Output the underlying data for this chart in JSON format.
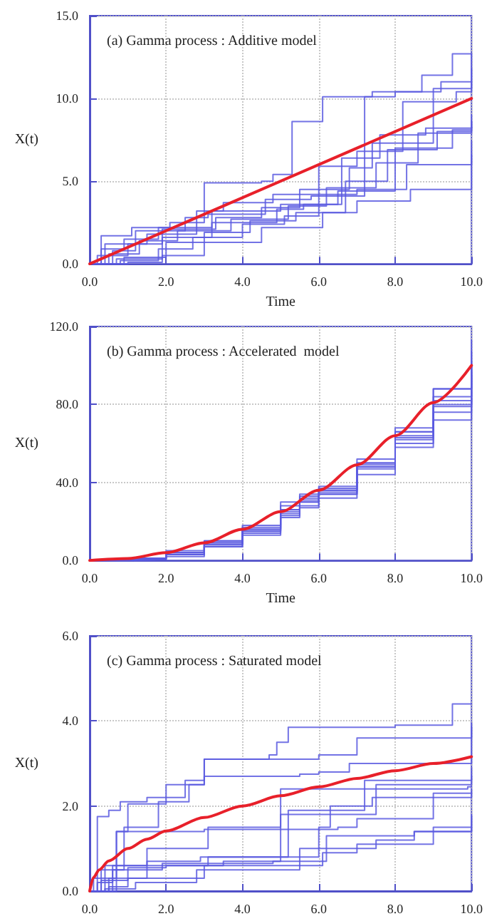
{
  "chart_data": [
    {
      "type": "step",
      "title": "(a) Gamma process : Additive model",
      "xlabel": "Time",
      "ylabel": "X(t)",
      "grid": true,
      "xlim": [
        0,
        10
      ],
      "ylim": [
        0,
        15
      ],
      "xticks": [
        {
          "value": 0,
          "label": "0.0"
        },
        {
          "value": 2,
          "label": "2.0"
        },
        {
          "value": 4,
          "label": "4.0"
        },
        {
          "value": 6,
          "label": "6.0"
        },
        {
          "value": 8,
          "label": "8.0"
        },
        {
          "value": 10,
          "label": "10.0"
        }
      ],
      "yticks": [
        {
          "value": 0,
          "label": "0.0"
        },
        {
          "value": 5,
          "label": "5.0"
        },
        {
          "value": 10,
          "label": "10.0"
        },
        {
          "value": 15,
          "label": "15.0"
        }
      ],
      "series": [
        {
          "color": "#5a5ae0",
          "x": [
            0,
            0.3,
            1.1,
            2.1,
            3.0,
            4.5,
            4.8,
            5.3,
            6.1,
            7.4,
            8.7,
            9.5,
            10
          ],
          "values": [
            0,
            1.7,
            2.2,
            2.5,
            4.9,
            5.0,
            5.4,
            8.6,
            10.1,
            10.4,
            11.4,
            12.7,
            12.7
          ]
        },
        {
          "color": "#5a5ae0",
          "x": [
            0,
            0.6,
            1.2,
            2.5,
            3.1,
            4.6,
            5.8,
            7.2,
            8.0,
            9.2,
            10
          ],
          "values": [
            0,
            0.8,
            2.0,
            2.8,
            3.0,
            3.9,
            4.1,
            10.1,
            10.4,
            11.0,
            11.8
          ]
        },
        {
          "color": "#5a5ae0",
          "x": [
            0,
            0.4,
            1.5,
            2.8,
            3.5,
            4.8,
            6.0,
            7.0,
            8.2,
            9.6,
            10
          ],
          "values": [
            0,
            1.2,
            1.8,
            3.2,
            3.7,
            4.2,
            5.9,
            6.8,
            9.8,
            10.4,
            11.0
          ]
        },
        {
          "color": "#5a5ae0",
          "x": [
            0,
            0.2,
            1.0,
            1.9,
            3.3,
            4.5,
            5.5,
            6.8,
            7.4,
            9.0,
            10
          ],
          "values": [
            0,
            0.5,
            1.2,
            2.1,
            2.8,
            3.4,
            4.5,
            5.8,
            7.3,
            10.6,
            12.7
          ]
        },
        {
          "color": "#5a5ae0",
          "x": [
            0,
            0.7,
            1.9,
            3.2,
            4.9,
            5.6,
            6.6,
            7.6,
            8.8,
            10
          ],
          "values": [
            0,
            0.3,
            1.6,
            2.5,
            3.3,
            3.6,
            6.4,
            7.8,
            8.2,
            9.0
          ]
        },
        {
          "color": "#5a5ae0",
          "x": [
            0,
            0.5,
            1.3,
            2.3,
            3.7,
            5.2,
            6.2,
            7.5,
            8.6,
            10
          ],
          "values": [
            0,
            0.6,
            1.4,
            2.0,
            2.7,
            3.5,
            4.6,
            6.1,
            7.9,
            8.6
          ]
        },
        {
          "color": "#5a5ae0",
          "x": [
            0,
            0.9,
            2.0,
            3.0,
            4.2,
            5.4,
            6.7,
            7.8,
            9.1,
            10
          ],
          "values": [
            0,
            0.4,
            1.3,
            1.9,
            2.6,
            3.1,
            5.0,
            6.9,
            8.0,
            8.3
          ]
        },
        {
          "color": "#5a5ae0",
          "x": [
            0,
            0.8,
            1.8,
            2.7,
            4.0,
            5.1,
            6.0,
            7.0,
            8.3,
            10
          ],
          "values": [
            0,
            0.2,
            0.9,
            1.6,
            2.4,
            2.9,
            4.2,
            4.5,
            6.0,
            7.4
          ]
        },
        {
          "color": "#5a5ae0",
          "x": [
            0,
            1.0,
            1.9,
            3.0,
            4.5,
            6.1,
            7.0,
            8.4,
            10
          ],
          "values": [
            0,
            0.1,
            0.5,
            1.3,
            2.2,
            3.1,
            3.8,
            4.5,
            6.6
          ]
        },
        {
          "color": "#5a5ae0",
          "x": [
            0,
            0.3,
            0.9,
            1.8,
            3.2,
            5.0,
            6.5,
            8.0,
            9.5,
            10
          ],
          "values": [
            0,
            0.9,
            1.5,
            2.2,
            3.2,
            3.6,
            4.4,
            7.0,
            8.1,
            8.6
          ]
        },
        {
          "type": "line",
          "color": "#e8202a",
          "x": [
            0,
            10
          ],
          "values": [
            0,
            10
          ]
        }
      ]
    },
    {
      "type": "step",
      "title": "(b) Gamma process : Accelerated  model",
      "xlabel": "Time",
      "ylabel": "X(t)",
      "grid": true,
      "xlim": [
        0,
        10
      ],
      "ylim": [
        0,
        120
      ],
      "xticks": [
        {
          "value": 0,
          "label": "0.0"
        },
        {
          "value": 2,
          "label": "2.0"
        },
        {
          "value": 4,
          "label": "4.0"
        },
        {
          "value": 6,
          "label": "6.0"
        },
        {
          "value": 8,
          "label": "8.0"
        },
        {
          "value": 10,
          "label": "10.0"
        }
      ],
      "yticks": [
        {
          "value": 0,
          "label": "0.0"
        },
        {
          "value": 40,
          "label": "40.0"
        },
        {
          "value": 80,
          "label": "80.0"
        },
        {
          "value": 120,
          "label": "120.0"
        }
      ],
      "series": [
        {
          "color": "#5a5ae0",
          "x": [
            0,
            1,
            2,
            3,
            4,
            5,
            5.5,
            6,
            7,
            8,
            9,
            10
          ],
          "values": [
            0,
            1,
            5,
            10,
            17,
            28,
            33,
            36,
            50,
            66,
            88,
            113
          ]
        },
        {
          "color": "#5a5ae0",
          "x": [
            0,
            1,
            2,
            3,
            4,
            5,
            5.5,
            6,
            7,
            8,
            9,
            10
          ],
          "values": [
            0,
            1,
            4,
            9,
            16,
            26,
            32,
            35,
            48,
            63,
            80,
            97
          ]
        },
        {
          "color": "#5a5ae0",
          "x": [
            0,
            1,
            2,
            3,
            4,
            5,
            5.5,
            6,
            7,
            8,
            9,
            10
          ],
          "values": [
            0,
            0.5,
            3,
            8,
            15,
            24,
            30,
            36,
            50,
            64,
            82,
            100
          ]
        },
        {
          "color": "#5a5ae0",
          "x": [
            0,
            1,
            2,
            3,
            4,
            5,
            5.5,
            6,
            7,
            8,
            9,
            10
          ],
          "values": [
            0,
            1,
            4,
            10,
            18,
            30,
            34,
            38,
            52,
            68,
            88,
            107
          ]
        },
        {
          "color": "#5a5ae0",
          "x": [
            0,
            1,
            2,
            3,
            4,
            5,
            5.5,
            6,
            7,
            8,
            9,
            10
          ],
          "values": [
            0,
            0.5,
            3,
            7,
            14,
            23,
            28,
            34,
            47,
            60,
            76,
            87
          ]
        },
        {
          "color": "#5a5ae0",
          "x": [
            0,
            1,
            2,
            3,
            4,
            5,
            5.5,
            6,
            7,
            8,
            9,
            10
          ],
          "values": [
            0,
            1,
            4,
            9,
            16,
            25,
            31,
            37,
            49,
            62,
            79,
            95
          ]
        },
        {
          "color": "#5a5ae0",
          "x": [
            0,
            1,
            2,
            3,
            4,
            5,
            5.5,
            6,
            7,
            8,
            9,
            10
          ],
          "values": [
            0,
            1,
            3,
            8,
            15,
            26,
            30,
            34,
            48,
            66,
            84,
            102
          ]
        },
        {
          "color": "#5a5ae0",
          "x": [
            0,
            1,
            2,
            3,
            4,
            5,
            5.5,
            6,
            7,
            8,
            9,
            10
          ],
          "values": [
            0,
            0.5,
            2,
            7,
            13,
            22,
            27,
            32,
            44,
            58,
            72,
            83
          ]
        },
        {
          "type": "line",
          "color": "#e8202a",
          "x": [
            0,
            1,
            2,
            3,
            4,
            5,
            6,
            7,
            8,
            9,
            10
          ],
          "values": [
            0,
            1,
            4,
            9,
            16,
            25,
            36,
            49,
            64,
            81,
            100
          ]
        }
      ]
    },
    {
      "type": "step",
      "title": "(c) Gamma process : Saturated model",
      "ylabel": "X(t)",
      "grid": true,
      "xlim": [
        0,
        10
      ],
      "ylim": [
        0,
        6
      ],
      "xticks": [
        {
          "value": 0,
          "label": "0.0"
        },
        {
          "value": 2,
          "label": "2.0"
        },
        {
          "value": 4,
          "label": "4.0"
        },
        {
          "value": 6,
          "label": "6.0"
        },
        {
          "value": 8,
          "label": "8.0"
        },
        {
          "value": 10,
          "label": "10.0"
        }
      ],
      "yticks": [
        {
          "value": 0,
          "label": "0.0"
        },
        {
          "value": 2,
          "label": "2.0"
        },
        {
          "value": 4,
          "label": "4.0"
        },
        {
          "value": 6,
          "label": "6.0"
        }
      ],
      "series": [
        {
          "color": "#5a5ae0",
          "x": [
            0,
            0.2,
            0.5,
            0.8,
            1.5,
            2.0,
            3.0,
            4.7,
            4.9,
            5.2,
            8.0,
            9.5,
            10
          ],
          "values": [
            0,
            1.75,
            1.9,
            2.1,
            2.2,
            2.5,
            3.1,
            3.2,
            3.5,
            3.85,
            3.9,
            4.4,
            4.4
          ]
        },
        {
          "color": "#5a5ae0",
          "x": [
            0,
            0.7,
            1.0,
            2.0,
            2.5,
            3.0,
            5.5,
            6.0,
            6.8,
            10
          ],
          "values": [
            0,
            1.4,
            2.05,
            2.2,
            2.6,
            2.7,
            2.75,
            2.8,
            3.0,
            3.95
          ]
        },
        {
          "color": "#5a5ae0",
          "x": [
            0,
            0.3,
            0.9,
            1.8,
            2.6,
            3.0,
            6.0,
            7.0,
            10
          ],
          "values": [
            0,
            0.5,
            1.5,
            2.1,
            2.5,
            3.1,
            3.2,
            3.6,
            3.85
          ]
        },
        {
          "color": "#5a5ae0",
          "x": [
            0,
            0.4,
            1.5,
            3.1,
            5.0,
            6.5,
            7.5,
            10
          ],
          "values": [
            0,
            0.6,
            1.0,
            1.5,
            1.8,
            1.8,
            2.5,
            2.9
          ]
        },
        {
          "color": "#5a5ae0",
          "x": [
            0,
            0.6,
            1.9,
            4.8,
            5.0,
            9.9,
            10
          ],
          "values": [
            0,
            0.6,
            0.65,
            0.7,
            2.4,
            2.45,
            2.45
          ]
        },
        {
          "color": "#5a5ae0",
          "x": [
            0,
            0.2,
            0.6,
            1.9,
            3.1,
            6.0,
            6.3,
            7.4,
            10
          ],
          "values": [
            0,
            0.2,
            0.5,
            0.6,
            0.8,
            1.5,
            2.0,
            2.2,
            2.3
          ]
        },
        {
          "color": "#5a5ae0",
          "x": [
            0,
            0.5,
            0.7,
            1.0,
            3.0,
            6.5,
            7.0,
            9.0,
            10
          ],
          "values": [
            0,
            0.3,
            1.4,
            1.4,
            1.45,
            1.5,
            1.7,
            2.3,
            2.4
          ]
        },
        {
          "color": "#5a5ae0",
          "x": [
            0,
            0.3,
            1.0,
            2.0,
            3.5,
            6.2,
            8.5,
            10
          ],
          "values": [
            0,
            0.25,
            0.55,
            0.6,
            0.7,
            1.3,
            1.4,
            1.8
          ]
        },
        {
          "color": "#5a5ae0",
          "x": [
            0,
            0.5,
            1.0,
            3.0,
            6.1,
            7.0,
            9.0,
            10
          ],
          "values": [
            0,
            0.1,
            0.3,
            0.6,
            0.9,
            1.1,
            1.5,
            1.75
          ]
        },
        {
          "color": "#5a5ae0",
          "x": [
            0,
            0.4,
            1.2,
            2.8,
            5.5,
            7.5,
            8.5,
            10
          ],
          "values": [
            0,
            0.05,
            0.2,
            0.5,
            1.0,
            1.2,
            1.4,
            1.5
          ]
        },
        {
          "color": "#5a5ae0",
          "x": [
            0,
            0.1,
            1.5,
            2.9,
            5.2,
            7.2,
            10
          ],
          "values": [
            0,
            0.3,
            0.7,
            0.8,
            1.9,
            2.6,
            2.7
          ]
        },
        {
          "type": "line",
          "color": "#e8202a",
          "x": [
            0,
            0.1,
            0.25,
            0.5,
            1,
            1.5,
            2,
            3,
            4,
            5,
            6,
            7,
            8,
            9,
            10
          ],
          "values": [
            0,
            0.32,
            0.5,
            0.71,
            1,
            1.22,
            1.41,
            1.73,
            2,
            2.24,
            2.45,
            2.65,
            2.83,
            3,
            3.16
          ]
        }
      ]
    }
  ]
}
